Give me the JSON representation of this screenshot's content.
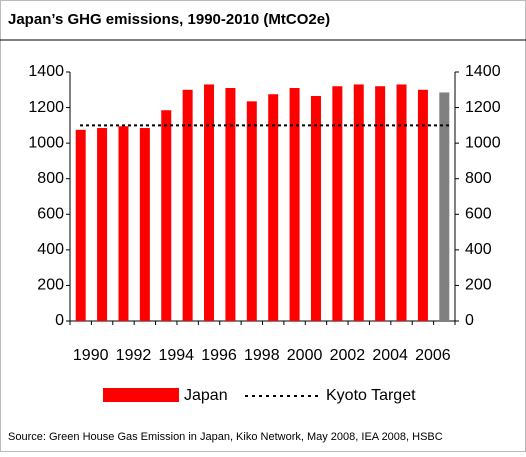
{
  "chart_data": {
    "type": "bar",
    "title": "Japan’s GHG emissions, 1990-2010 (MtCO2e)",
    "categories": [
      "1990",
      null,
      "1992",
      null,
      "1994",
      null,
      "1996",
      null,
      "1998",
      null,
      "2000",
      null,
      "2002",
      null,
      "2004",
      null,
      "2006",
      null
    ],
    "series": [
      {
        "name": "Japan",
        "color": "#ff0000",
        "values": [
          1075,
          1085,
          1095,
          1085,
          1185,
          1300,
          1330,
          1310,
          1235,
          1275,
          1310,
          1265,
          1320,
          1330,
          1320,
          1330,
          1300,
          1285
        ],
        "bar_colors": [
          "#ff0000",
          "#ff0000",
          "#ff0000",
          "#ff0000",
          "#ff0000",
          "#ff0000",
          "#ff0000",
          "#ff0000",
          "#ff0000",
          "#ff0000",
          "#ff0000",
          "#ff0000",
          "#ff0000",
          "#ff0000",
          "#ff0000",
          "#ff0000",
          "#ff0000",
          "#808080"
        ]
      }
    ],
    "target": {
      "name": "Kyoto Target",
      "value": 1100,
      "color": "#000000"
    },
    "ylim": [
      0,
      1400
    ],
    "yticks": [
      0,
      200,
      400,
      600,
      800,
      1000,
      1200,
      1400
    ],
    "y2lim": [
      0,
      1400
    ],
    "y2ticks": [
      0,
      200,
      400,
      600,
      800,
      1000,
      1200,
      1400
    ],
    "source": "Source: Green House Gas Emission in Japan, Kiko Network, May 2008, IEA 2008, HSBC"
  }
}
